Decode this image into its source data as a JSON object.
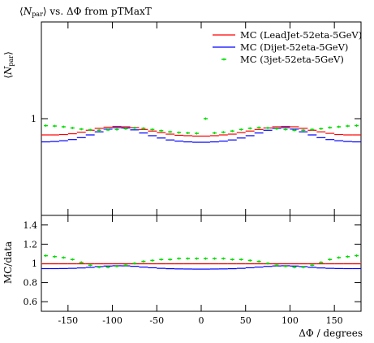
{
  "chart_data": [
    {
      "type": "line",
      "title": "⟨N_par⟩ vs. ΔΦ from pTMaxT",
      "title_parts": {
        "pre": "⟨",
        "n": "N",
        "sub": "par",
        "post": "⟩ vs. ΔΦ from pTMaxT"
      },
      "ylabel": "⟨N_par⟩",
      "ylabel_parts": {
        "pre": "⟨",
        "n": "N",
        "sub": "par",
        "post": "⟩"
      },
      "xlim": [
        -180,
        180
      ],
      "ylim": [
        0.75,
        1.25
      ],
      "y_tick_label": "1",
      "legend_position": "top-right",
      "x": [
        -175,
        -165,
        -155,
        -145,
        -135,
        -125,
        -115,
        -105,
        -95,
        -85,
        -75,
        -65,
        -55,
        -45,
        -35,
        -25,
        -15,
        -5,
        5,
        15,
        25,
        35,
        45,
        55,
        65,
        75,
        85,
        95,
        105,
        115,
        125,
        135,
        145,
        155,
        165,
        175
      ],
      "series": [
        {
          "name": "MC (LeadJet-52eta-5GeV)",
          "color": "#ff0000",
          "marker": "line",
          "values": [
            0.958,
            0.958,
            0.959,
            0.961,
            0.965,
            0.97,
            0.975,
            0.978,
            0.98,
            0.979,
            0.977,
            0.972,
            0.968,
            0.964,
            0.96,
            0.957,
            0.956,
            0.955,
            0.955,
            0.956,
            0.958,
            0.96,
            0.964,
            0.968,
            0.972,
            0.976,
            0.979,
            0.98,
            0.979,
            0.975,
            0.97,
            0.966,
            0.962,
            0.959,
            0.958,
            0.958
          ]
        },
        {
          "name": "MC (Dijet-52eta-5GeV)",
          "color": "#0000ff",
          "marker": "line",
          "values": [
            0.94,
            0.941,
            0.943,
            0.946,
            0.951,
            0.958,
            0.966,
            0.973,
            0.977,
            0.976,
            0.971,
            0.963,
            0.956,
            0.95,
            0.945,
            0.942,
            0.94,
            0.939,
            0.939,
            0.94,
            0.942,
            0.945,
            0.95,
            0.956,
            0.963,
            0.97,
            0.975,
            0.977,
            0.973,
            0.966,
            0.958,
            0.951,
            0.946,
            0.943,
            0.941,
            0.94
          ]
        },
        {
          "name": "MC (3jet-52eta-5GeV)",
          "color": "#00dd00",
          "marker": "points",
          "values": [
            0.982,
            0.981,
            0.979,
            0.976,
            0.973,
            0.971,
            0.97,
            0.971,
            0.972,
            0.974,
            0.976,
            0.975,
            0.972,
            0.969,
            0.966,
            0.964,
            0.963,
            0.962,
            1.0,
            0.963,
            0.965,
            0.968,
            0.972,
            0.975,
            0.977,
            0.976,
            0.974,
            0.972,
            0.97,
            0.97,
            0.972,
            0.974,
            0.977,
            0.979,
            0.981,
            0.982
          ]
        }
      ]
    },
    {
      "type": "line",
      "ylabel": "MC/data",
      "xlabel": "ΔΦ / degrees",
      "xlim": [
        -180,
        180
      ],
      "ylim": [
        0.5,
        1.5
      ],
      "x_ticks": [
        -150,
        -100,
        -50,
        0,
        50,
        100,
        150
      ],
      "x_tick_labels": [
        "-150",
        "-100",
        "-50",
        "0",
        "50",
        "100",
        "150"
      ],
      "y_ticks": [
        0.6,
        0.8,
        1.0,
        1.2,
        1.4
      ],
      "y_tick_labels": [
        "0.6",
        "0.8",
        "1",
        "1.2",
        "1.4"
      ],
      "reference_line": 1.0,
      "x": [
        -175,
        -165,
        -155,
        -145,
        -135,
        -125,
        -115,
        -105,
        -95,
        -85,
        -75,
        -65,
        -55,
        -45,
        -35,
        -25,
        -15,
        -5,
        5,
        15,
        25,
        35,
        45,
        55,
        65,
        75,
        85,
        95,
        105,
        115,
        125,
        135,
        145,
        155,
        165,
        175
      ],
      "series": [
        {
          "name": "MC (LeadJet-52eta-5GeV)",
          "color": "#ff0000",
          "marker": "line",
          "values": [
            0.995,
            0.995,
            0.995,
            0.995,
            0.995,
            0.995,
            0.995,
            0.995,
            0.995,
            0.995,
            0.995,
            0.995,
            0.995,
            0.995,
            0.995,
            0.995,
            0.995,
            0.995,
            0.995,
            0.995,
            0.995,
            0.995,
            0.995,
            0.995,
            0.995,
            0.995,
            0.995,
            0.995,
            0.995,
            0.995,
            0.995,
            0.995,
            0.995,
            0.995,
            0.995,
            0.995
          ]
        },
        {
          "name": "MC (Dijet-52eta-5GeV)",
          "color": "#0000ff",
          "marker": "line",
          "values": [
            0.945,
            0.945,
            0.946,
            0.948,
            0.952,
            0.958,
            0.966,
            0.972,
            0.975,
            0.974,
            0.969,
            0.961,
            0.954,
            0.948,
            0.944,
            0.942,
            0.941,
            0.94,
            0.94,
            0.941,
            0.942,
            0.944,
            0.948,
            0.954,
            0.961,
            0.968,
            0.973,
            0.975,
            0.972,
            0.966,
            0.958,
            0.952,
            0.948,
            0.946,
            0.945,
            0.945
          ]
        },
        {
          "name": "MC (3jet-52eta-5GeV)",
          "color": "#00dd00",
          "marker": "points",
          "values": [
            1.08,
            1.07,
            1.06,
            1.04,
            1.01,
            0.98,
            0.96,
            0.96,
            0.97,
            0.98,
            1.0,
            1.02,
            1.03,
            1.04,
            1.04,
            1.05,
            1.05,
            1.05,
            1.05,
            1.05,
            1.05,
            1.04,
            1.04,
            1.03,
            1.02,
            1.0,
            0.98,
            0.97,
            0.96,
            0.96,
            0.98,
            1.01,
            1.04,
            1.06,
            1.07,
            1.08
          ]
        }
      ]
    }
  ]
}
